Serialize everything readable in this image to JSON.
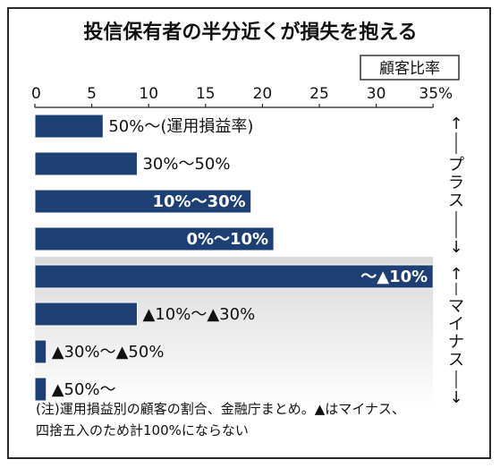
{
  "chart_data": {
    "type": "bar",
    "orientation": "horizontal",
    "title": "投信保有者の半分近くが損失を抱える",
    "unit_label": "顧客比率",
    "xlim": [
      0,
      35
    ],
    "x_ticks": [
      "0",
      "5",
      "10",
      "15",
      "20",
      "25",
      "30",
      "35%"
    ],
    "categories": [
      "50%～(運用損益率)",
      "30%～50%",
      "10%～30%",
      "0%～10%",
      "～▲10%",
      "▲10%～▲30%",
      "▲30%～▲50%",
      "▲50%～"
    ],
    "values": [
      6.0,
      9.0,
      19.0,
      21.0,
      35.0,
      9.0,
      1.0,
      1.0
    ],
    "label_inside": [
      false,
      false,
      true,
      true,
      true,
      false,
      false,
      false
    ],
    "groups": [
      {
        "name": "プラス",
        "range": [
          0,
          3
        ]
      },
      {
        "name": "マイナス",
        "range": [
          4,
          7
        ]
      }
    ],
    "arrows": {
      "up": "↑",
      "down": "↓"
    },
    "note_lines": [
      "(注)運用損益別の顧客の割合、金融庁まとめ。▲はマイナス、",
      "四捨五入のため計100%にならない"
    ],
    "colors": {
      "bar": "#1e3f73",
      "bar_border": "#ffffff",
      "negative_bg_top": "#d9d9d9",
      "negative_bg_bottom": "#ffffff",
      "text": "#111111"
    }
  }
}
